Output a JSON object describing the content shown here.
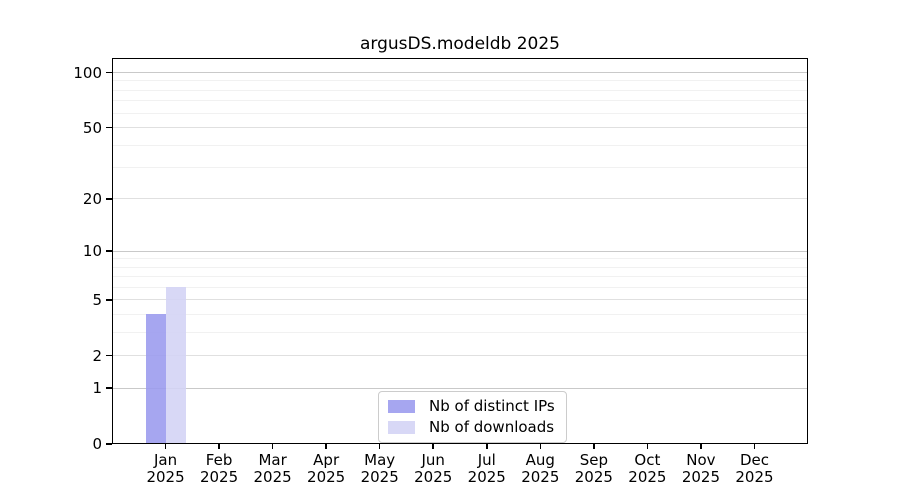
{
  "chart_data": {
    "type": "bar",
    "title": "argusDS.modeldb 2025",
    "categories": [
      "Jan 2025",
      "Feb 2025",
      "Mar 2025",
      "Apr 2025",
      "May 2025",
      "Jun 2025",
      "Jul 2025",
      "Aug 2025",
      "Sep 2025",
      "Oct 2025",
      "Nov 2025",
      "Dec 2025"
    ],
    "x_tick_months": [
      "Jan",
      "Feb",
      "Mar",
      "Apr",
      "May",
      "Jun",
      "Jul",
      "Aug",
      "Sep",
      "Oct",
      "Nov",
      "Dec"
    ],
    "x_tick_year": "2025",
    "series": [
      {
        "name": "Nb of distinct IPs",
        "color": "#9a9aee",
        "values": [
          4,
          0,
          0,
          0,
          0,
          0,
          0,
          0,
          0,
          0,
          0,
          0
        ]
      },
      {
        "name": "Nb of downloads",
        "color": "#d3d3f5",
        "values": [
          6,
          0,
          0,
          0,
          0,
          0,
          0,
          0,
          0,
          0,
          0,
          0
        ]
      }
    ],
    "yscale": "log1p",
    "ylim": [
      0,
      120
    ],
    "y_ticks": [
      0,
      1,
      2,
      5,
      10,
      20,
      50,
      100
    ],
    "y_minor_ticks": [
      3,
      4,
      6,
      7,
      8,
      9,
      30,
      40,
      60,
      70,
      80,
      90
    ],
    "grid": true,
    "legend_position": "lower center",
    "colors": {
      "background": "#ffffff",
      "axis": "#000000",
      "grid_decade": "#c9c9c9",
      "grid_labeled": "#e0e0e0",
      "grid_minor": "#f1f1f1",
      "text": "#000000"
    }
  }
}
